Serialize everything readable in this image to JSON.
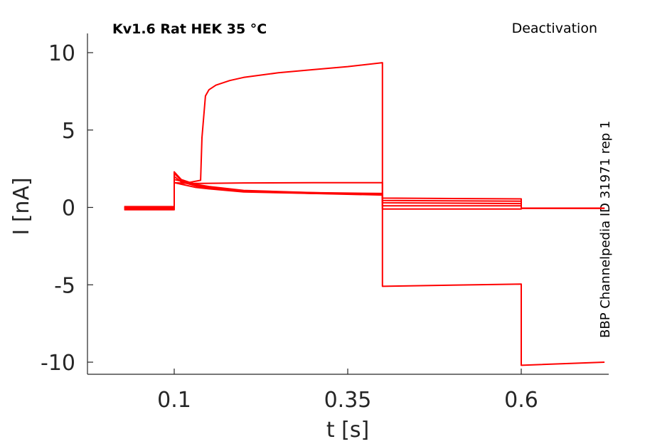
{
  "chart_data": {
    "type": "line",
    "title_left": "Kv1.6  Rat  HEK  35 °C",
    "title_right": "Deactivation",
    "side_label": "BBP Channelpedia ID 31971 rep 1",
    "xlabel": "t [s]",
    "ylabel": "I [nA]",
    "xlim": [
      0,
      0.75
    ],
    "ylim": [
      -10.8,
      11.2
    ],
    "xticks": [
      0.1,
      0.35,
      0.6
    ],
    "xtick_labels": [
      "0.1",
      "0.35",
      "0.6"
    ],
    "yticks": [
      10,
      5,
      0,
      -5,
      -10
    ],
    "ytick_labels": [
      "10",
      "5",
      "0",
      "-5",
      "-10"
    ],
    "grid": false,
    "color": "#ff0000",
    "series": [
      {
        "x": [
          0.028,
          0.1,
          0.1,
          0.11,
          0.13,
          0.15,
          0.2,
          0.3,
          0.4,
          0.4,
          0.6,
          0.6,
          0.72
        ],
        "y": [
          0.0,
          0.0,
          2.3,
          1.8,
          1.5,
          1.35,
          1.1,
          0.95,
          0.85,
          0.6,
          0.55,
          -0.05,
          -0.05
        ]
      },
      {
        "x": [
          0.028,
          0.1,
          0.1,
          0.11,
          0.13,
          0.15,
          0.2,
          0.3,
          0.4,
          0.4,
          0.6,
          0.6,
          0.72
        ],
        "y": [
          -0.1,
          -0.1,
          2.2,
          1.75,
          1.45,
          1.3,
          1.05,
          0.9,
          0.8,
          0.45,
          0.4,
          -0.05,
          -0.05
        ]
      },
      {
        "x": [
          0.028,
          0.1,
          0.1,
          0.11,
          0.13,
          0.15,
          0.2,
          0.3,
          0.4,
          0.4,
          0.6,
          0.6,
          0.72
        ],
        "y": [
          -0.15,
          -0.15,
          2.0,
          1.65,
          1.4,
          1.25,
          1.05,
          0.95,
          0.9,
          0.3,
          0.25,
          -0.05,
          -0.05
        ]
      },
      {
        "x": [
          0.028,
          0.1,
          0.1,
          0.11,
          0.13,
          0.15,
          0.2,
          0.3,
          0.4,
          0.4,
          0.6,
          0.6,
          0.72
        ],
        "y": [
          0.05,
          0.05,
          1.6,
          1.5,
          1.3,
          1.2,
          1.0,
          0.9,
          0.85,
          0.1,
          0.1,
          -0.05,
          -0.05
        ]
      },
      {
        "x": [
          0.028,
          0.1,
          0.1,
          0.12,
          0.14,
          0.2,
          0.3,
          0.4,
          0.4,
          0.6,
          0.6,
          0.72
        ],
        "y": [
          -0.05,
          -0.05,
          1.6,
          1.55,
          1.55,
          1.58,
          1.6,
          1.6,
          -0.1,
          -0.1,
          -0.05,
          -0.05
        ]
      },
      {
        "x": [
          0.028,
          0.1,
          0.1,
          0.12,
          0.138,
          0.14,
          0.145,
          0.15,
          0.16,
          0.18,
          0.2,
          0.25,
          0.3,
          0.35,
          0.4,
          0.4,
          0.6,
          0.6,
          0.72
        ],
        "y": [
          0.0,
          0.0,
          1.8,
          1.6,
          1.75,
          4.5,
          7.2,
          7.6,
          7.9,
          8.2,
          8.4,
          8.7,
          8.9,
          9.1,
          9.35,
          -5.1,
          -4.95,
          -10.2,
          -10.0
        ]
      }
    ]
  }
}
